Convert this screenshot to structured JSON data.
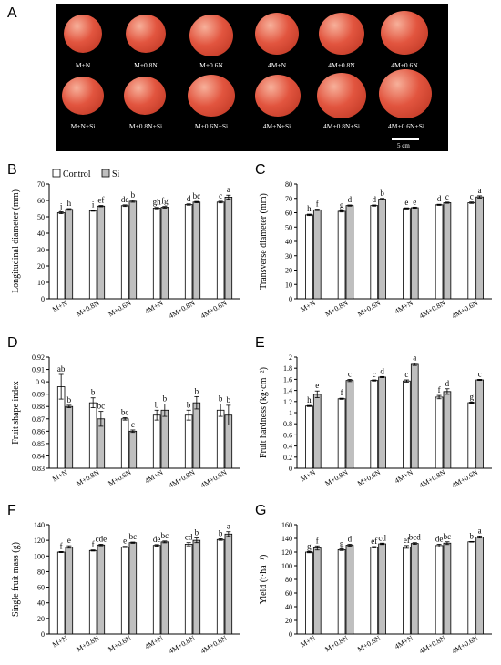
{
  "panel_letters": [
    "A",
    "B",
    "C",
    "D",
    "E",
    "F",
    "G"
  ],
  "photo": {
    "row1_labels": [
      "M+N",
      "M+0.8N",
      "M+0.6N",
      "4M+N",
      "4M+0.8N",
      "4M+0.6N"
    ],
    "row2_labels": [
      "M+N+Si",
      "M+0.8N+Si",
      "M+0.6N+Si",
      "4M+N+Si",
      "4M+0.8N+Si",
      "4M+0.6N+Si"
    ],
    "scale_label": "5 cm",
    "colors": {
      "background": "#000000",
      "fruit": "#e2553f",
      "highlight": "#f7b09a"
    }
  },
  "legend": {
    "control": "Control",
    "si": "Si"
  },
  "colors": {
    "control": "#ffffff",
    "si": "#bfbfbf",
    "stroke": "#000000"
  },
  "chart_data": [
    {
      "id": "B",
      "type": "bar",
      "categories": [
        "M+N",
        "M+0.8N",
        "M+0.6N",
        "4M+N",
        "4M+0.8N",
        "4M+0.6N"
      ],
      "ylabel": "Longitudinal diameter (mm)",
      "ylim": [
        0,
        70
      ],
      "yticks": [
        0,
        10,
        20,
        30,
        40,
        50,
        60,
        70
      ],
      "legend": true,
      "legend_position": "top-left",
      "series": [
        {
          "values": [
            52.5,
            53.8,
            56.8,
            55.3,
            57.5,
            59.0
          ],
          "errors": [
            0.6,
            0.4,
            0.5,
            0.4,
            0.4,
            0.5
          ],
          "letters": [
            "j",
            "i",
            "de",
            "gh",
            "d",
            "c"
          ]
        },
        {
          "values": [
            54.5,
            56.5,
            59.5,
            55.8,
            59.0,
            62.0
          ],
          "errors": [
            0.5,
            0.4,
            0.6,
            0.5,
            0.4,
            1.2
          ],
          "letters": [
            "h",
            "ef",
            "b",
            "fg",
            "bc",
            "a"
          ]
        }
      ]
    },
    {
      "id": "C",
      "type": "bar",
      "categories": [
        "M+N",
        "M+0.8N",
        "M+0.6N",
        "4M+N",
        "4M+0.8N",
        "4M+0.6N"
      ],
      "ylabel": "Transverse diameter (mm)",
      "ylim": [
        0,
        80
      ],
      "yticks": [
        0,
        10,
        20,
        30,
        40,
        50,
        60,
        70,
        80
      ],
      "series": [
        {
          "values": [
            58.5,
            61.0,
            65.0,
            63.0,
            65.5,
            67.0
          ],
          "errors": [
            0.5,
            0.5,
            0.4,
            0.4,
            0.4,
            0.5
          ],
          "letters": [
            "h",
            "g",
            "d",
            "e",
            "d",
            "c"
          ]
        },
        {
          "values": [
            62.0,
            65.0,
            69.5,
            63.5,
            67.0,
            71.0
          ],
          "errors": [
            0.5,
            0.4,
            0.5,
            0.4,
            0.4,
            0.8
          ],
          "letters": [
            "f",
            "d",
            "b",
            "e",
            "c",
            "a"
          ]
        }
      ]
    },
    {
      "id": "D",
      "type": "bar",
      "categories": [
        "M+N",
        "M+0.8N",
        "M+0.6N",
        "4M+N",
        "4M+0.8N",
        "4M+0.6N"
      ],
      "ylabel": "Fruit shape index",
      "ylim": [
        0.83,
        0.92
      ],
      "yticks": [
        0.83,
        0.84,
        0.85,
        0.86,
        0.87,
        0.88,
        0.89,
        0.9,
        0.91,
        0.92
      ],
      "series": [
        {
          "values": [
            0.896,
            0.883,
            0.87,
            0.873,
            0.873,
            0.877
          ],
          "errors": [
            0.01,
            0.004,
            0.001,
            0.004,
            0.004,
            0.005
          ],
          "letters": [
            "ab",
            "b",
            "bc",
            "b",
            "b",
            "b"
          ]
        },
        {
          "values": [
            0.88,
            0.87,
            0.86,
            0.877,
            0.883,
            0.873
          ],
          "errors": [
            0.001,
            0.006,
            0.001,
            0.005,
            0.005,
            0.008
          ],
          "letters": [
            "b",
            "bc",
            "c",
            "b",
            "b",
            "b"
          ]
        }
      ]
    },
    {
      "id": "E",
      "type": "bar",
      "categories": [
        "M+N",
        "M+0.8N",
        "M+0.6N",
        "4M+N",
        "4M+0.8N",
        "4M+0.6N"
      ],
      "ylabel": "Fruit hardness (kg·cm⁻²)",
      "ylim": [
        0,
        2
      ],
      "yticks": [
        0,
        0.2,
        0.4,
        0.6,
        0.8,
        1,
        1.2,
        1.4,
        1.6,
        1.8,
        2
      ],
      "series": [
        {
          "values": [
            1.12,
            1.25,
            1.58,
            1.57,
            1.28,
            1.18
          ],
          "errors": [
            0.01,
            0.01,
            0.01,
            0.02,
            0.03,
            0.01
          ],
          "letters": [
            "h",
            "f",
            "c",
            "c",
            "f",
            "g"
          ]
        },
        {
          "values": [
            1.33,
            1.58,
            1.64,
            1.87,
            1.38,
            1.59
          ],
          "errors": [
            0.06,
            0.02,
            0.01,
            0.02,
            0.05,
            0.01
          ],
          "letters": [
            "e",
            "c",
            "d",
            "a",
            "d",
            "c"
          ]
        }
      ]
    },
    {
      "id": "F",
      "type": "bar",
      "categories": [
        "M+N",
        "M+0.8N",
        "M+0.6N",
        "4M+N",
        "4M+0.8N",
        "4M+0.6N"
      ],
      "ylabel": "Single fruit mass (g)",
      "ylim": [
        0,
        140
      ],
      "yticks": [
        0,
        20,
        40,
        60,
        80,
        100,
        120,
        140
      ],
      "series": [
        {
          "values": [
            105,
            107,
            111.5,
            113.5,
            115,
            121
          ],
          "errors": [
            0.7,
            0.7,
            0.8,
            1.0,
            2.0,
            1.0
          ],
          "letters": [
            "f",
            "f",
            "e",
            "de",
            "cd",
            "b"
          ]
        },
        {
          "values": [
            111.5,
            114,
            117,
            118,
            120,
            128
          ],
          "errors": [
            1.5,
            1.0,
            0.8,
            1.2,
            3.0,
            3.0
          ],
          "letters": [
            "e",
            "cde",
            "bc",
            "bc",
            "b",
            "a"
          ]
        }
      ]
    },
    {
      "id": "G",
      "type": "bar",
      "categories": [
        "M+N",
        "M+0.8N",
        "M+0.6N",
        "4M+N",
        "4M+0.8N",
        "4M+0.6N"
      ],
      "ylabel": "Yield (t·ha⁻¹)",
      "ylim": [
        0,
        160
      ],
      "yticks": [
        0,
        20,
        40,
        60,
        80,
        100,
        120,
        140,
        160
      ],
      "series": [
        {
          "values": [
            120,
            123.5,
            127,
            127.5,
            129.5,
            135
          ],
          "errors": [
            1.0,
            1.2,
            1.0,
            2.0,
            2.0,
            0.5
          ],
          "letters": [
            "g",
            "g",
            "ef",
            "ef",
            "de",
            "b"
          ]
        },
        {
          "values": [
            126,
            130,
            132,
            132.5,
            133,
            142
          ],
          "errors": [
            3.0,
            1.5,
            1.0,
            1.2,
            2.0,
            1.5
          ],
          "letters": [
            "f",
            "d",
            "cd",
            "bcd",
            "bc",
            "a"
          ]
        }
      ]
    }
  ]
}
